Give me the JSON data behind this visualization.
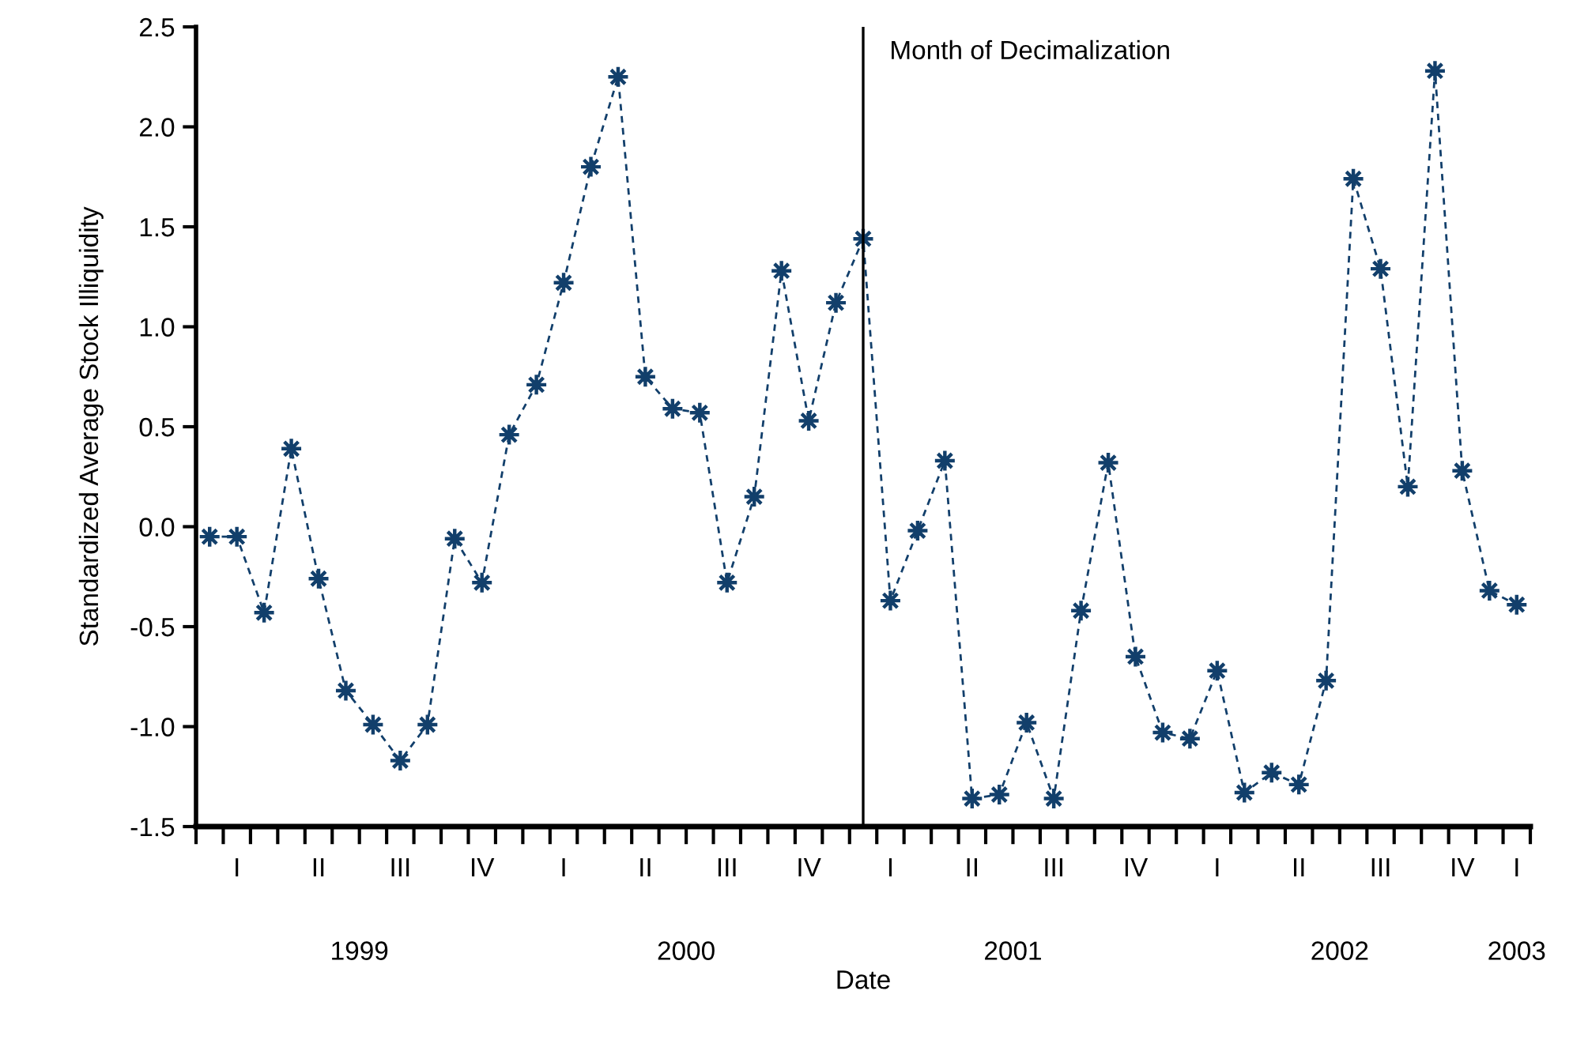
{
  "chart_data": {
    "type": "line",
    "xlabel": "Date",
    "ylabel": "Standardized Average Stock Illiquidity",
    "categories": [
      null,
      "I",
      null,
      null,
      "II",
      null,
      null,
      "III",
      null,
      null,
      "IV",
      null,
      null,
      "I",
      null,
      null,
      "II",
      null,
      null,
      "III",
      null,
      null,
      "IV",
      null,
      null,
      "I",
      null,
      null,
      "II",
      null,
      null,
      "III",
      null,
      null,
      "IV",
      null,
      null,
      "I",
      null,
      null,
      "II",
      null,
      null,
      "III",
      null,
      null,
      "IV",
      null,
      "I"
    ],
    "series": [
      {
        "color": "#123f6b",
        "values": [
          -0.05,
          -0.05,
          -0.43,
          0.39,
          -0.26,
          -0.82,
          -0.99,
          -1.17,
          -0.99,
          -0.06,
          -0.28,
          0.46,
          0.71,
          1.22,
          1.8,
          2.25,
          0.75,
          0.59,
          0.57,
          -0.28,
          0.15,
          1.28,
          0.53,
          1.12,
          1.44,
          -0.37,
          -0.02,
          0.33,
          -1.36,
          -1.34,
          -0.98,
          -1.36,
          -0.42,
          0.32,
          -0.65,
          -1.03,
          -1.06,
          -0.72,
          -1.33,
          -1.23,
          -1.29,
          -0.77,
          1.74,
          1.29,
          0.2,
          2.28,
          0.28,
          -0.32,
          -0.39
        ]
      }
    ],
    "marker": "star",
    "line_style": "dashed",
    "legend": false,
    "ylim": [
      -1.5,
      2.5
    ],
    "yticks": [
      -1.5,
      {
        "value": -1,
        "label": "-1.0"
      },
      -0.5,
      {
        "value": 0,
        "label": "0.0"
      },
      0.5,
      {
        "value": 1,
        "label": "1.0"
      },
      1.5,
      {
        "value": 2,
        "label": "2.0"
      },
      2.5
    ],
    "annotations": [
      "Month of Decimalization",
      "1999",
      "2000",
      "2001",
      "2002",
      "2003"
    ]
  }
}
